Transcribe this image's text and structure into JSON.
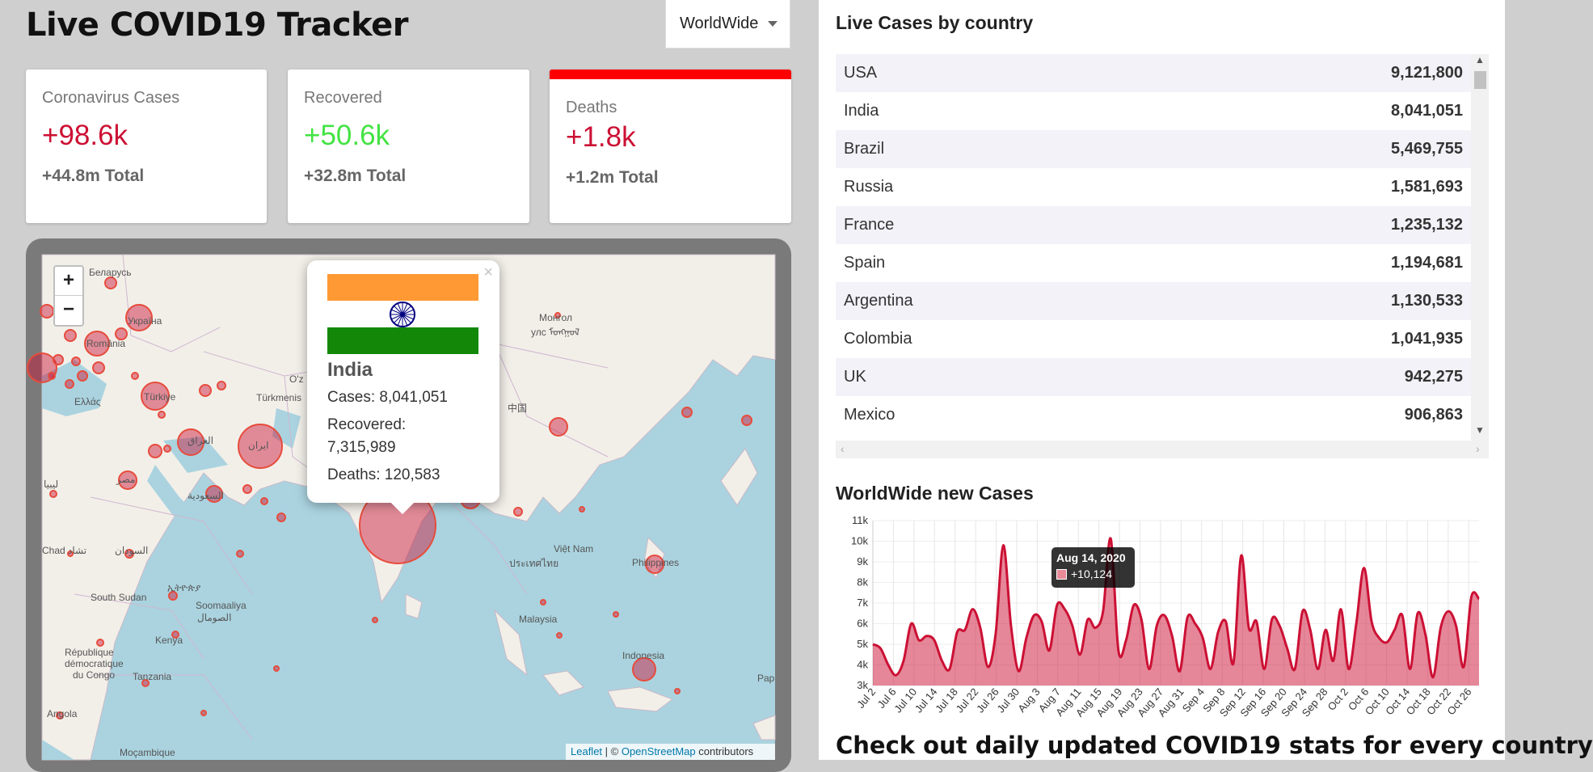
{
  "app_title": "Live COVID19 Tracker",
  "country_select": {
    "selected": "WorldWide"
  },
  "stats": {
    "cases": {
      "label": "Coronavirus Cases",
      "new": "+98.6k",
      "total": "+44.8m Total"
    },
    "recovered": {
      "label": "Recovered",
      "new": "+50.6k",
      "total": "+32.8m Total"
    },
    "deaths": {
      "label": "Deaths",
      "new": "+1.8k",
      "total": "+1.2m Total",
      "accent": "#ff0000"
    }
  },
  "map": {
    "zoom_in": "+",
    "zoom_out": "−",
    "attribution": {
      "leaflet": "Leaflet",
      "sep": " | © ",
      "osm": "OpenStreetMap",
      "suffix": " contributors"
    },
    "labels": [
      "Беларусь",
      "Україна",
      "România",
      "Ελλάς",
      "Türkiye",
      "Монгол",
      "улс ᠮᠣᠩᠭᠣᠯ",
      "Türkmenis",
      "中国",
      "ایران",
      "العراق",
      "مصر",
      "ليبيا",
      "السعودية",
      "Chad تشاد",
      "السودان",
      "South Sudan",
      "ኢትዮጵያ",
      "Soomaaliya",
      "الصومال",
      "Kenya",
      "République",
      "démocratique",
      "du Congo",
      "Tanzania",
      "Angola",
      "Moçambique",
      "Việt Nam",
      "ประเทศไทย",
      "Malaysia",
      "Philippines",
      "Indonesia",
      "Pap",
      "O'z"
    ],
    "popup": {
      "country": "India",
      "cases": "Cases: 8,041,051",
      "recovered_label": "Recovered:",
      "recovered_value": "7,315,989",
      "deaths": "Deaths: 120,583",
      "close": "×",
      "flag_colors": [
        "#ff9933",
        "#ffffff",
        "#138808"
      ]
    }
  },
  "table": {
    "title": "Live Cases by country",
    "rows": [
      {
        "country": "USA",
        "cases": "9,121,800"
      },
      {
        "country": "India",
        "cases": "8,041,051"
      },
      {
        "country": "Brazil",
        "cases": "5,469,755"
      },
      {
        "country": "Russia",
        "cases": "1,581,693"
      },
      {
        "country": "France",
        "cases": "1,235,132"
      },
      {
        "country": "Spain",
        "cases": "1,194,681"
      },
      {
        "country": "Argentina",
        "cases": "1,130,533"
      },
      {
        "country": "Colombia",
        "cases": "1,041,935"
      },
      {
        "country": "UK",
        "cases": "942,275"
      },
      {
        "country": "Mexico",
        "cases": "906,863"
      }
    ]
  },
  "chart_title": "WorldWide new Cases",
  "tooltip": {
    "date": "Aug 14, 2020",
    "value": "+10,124"
  },
  "footer_heading": "Check out daily updated COVID19 stats for every country",
  "colors": {
    "accent_red": "#cc1034",
    "recovered_green": "#42e342",
    "line": "#cc1034",
    "fill": "rgba(204,16,52,0.5)"
  },
  "chart_data": {
    "type": "area",
    "title": "",
    "xlabel": "",
    "ylabel": "",
    "ylim": [
      3000,
      11000
    ],
    "yticks": [
      "3k",
      "4k",
      "5k",
      "6k",
      "7k",
      "8k",
      "9k",
      "10k",
      "11k"
    ],
    "xticks": [
      "Jul 2",
      "Jul 6",
      "Jul 10",
      "Jul 14",
      "Jul 18",
      "Jul 22",
      "Jul 26",
      "Jul 30",
      "Aug 3",
      "Aug 7",
      "Aug 11",
      "Aug 15",
      "Aug 19",
      "Aug 23",
      "Aug 27",
      "Aug 31",
      "Sep 4",
      "Sep 8",
      "Sep 12",
      "Sep 16",
      "Sep 20",
      "Sep 24",
      "Sep 28",
      "Oct 2",
      "Oct 6",
      "Oct 10",
      "Oct 14",
      "Oct 18",
      "Oct 22",
      "Oct 26"
    ],
    "x_start": "2020-07-02",
    "x_end": "2020-10-28",
    "values": [
      5000,
      4800,
      4000,
      3500,
      4200,
      6000,
      5200,
      5400,
      5200,
      4200,
      3800,
      5600,
      5700,
      6700,
      5800,
      3900,
      5500,
      9800,
      5900,
      3700,
      5300,
      6400,
      6100,
      4700,
      6900,
      6700,
      5900,
      4500,
      6200,
      5800,
      6600,
      10124,
      4700,
      5200,
      6900,
      6200,
      3800,
      5900,
      6400,
      5400,
      3700,
      6300,
      6000,
      5300,
      3800,
      5600,
      6100,
      4100,
      9300,
      5800,
      6100,
      3800,
      6200,
      5900,
      4800,
      3800,
      6600,
      5700,
      3800,
      5700,
      4200,
      6700,
      3800,
      6000,
      8700,
      6100,
      5300,
      5100,
      5700,
      6400,
      3800,
      6500,
      5500,
      3400,
      5800,
      6600,
      5900,
      3900,
      7300,
      7200
    ]
  }
}
